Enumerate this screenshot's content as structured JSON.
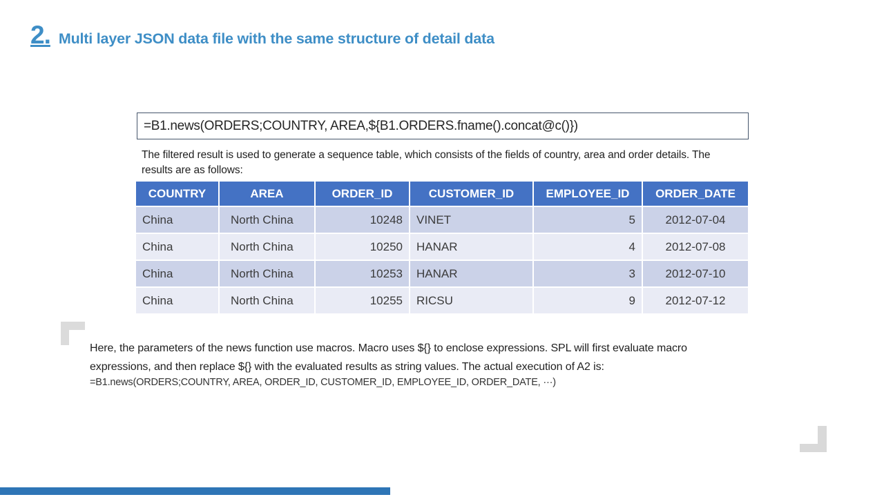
{
  "slide": {
    "title_number": "2.",
    "title": "Multi layer JSON data file with the same structure of detail data"
  },
  "code_box": {
    "formula": "=B1.news(ORDERS;COUNTRY, AREA,${B1.ORDERS.fname().concat@c()})"
  },
  "description": "The filtered result is used to generate a sequence table, which consists of the fields of country, area and order details. The results are as follows:",
  "table": {
    "columns": [
      "COUNTRY",
      "AREA",
      "ORDER_ID",
      "CUSTOMER_ID",
      "EMPLOYEE_ID",
      "ORDER_DATE"
    ],
    "rows": [
      [
        "China",
        "North China",
        "10248",
        "VINET",
        "5",
        "2012-07-04"
      ],
      [
        "China",
        "North China",
        "10250",
        "HANAR",
        "4",
        "2012-07-08"
      ],
      [
        "China",
        "North China",
        "10253",
        "HANAR",
        "3",
        "2012-07-10"
      ],
      [
        "China",
        "North China",
        "10255",
        "RICSU",
        "9",
        "2012-07-12"
      ]
    ]
  },
  "footnote": {
    "paragraph": "Here, the parameters of the news function use macros. Macro uses ${} to enclose expressions. SPL will first evaluate macro expressions, and then replace ${} with the evaluated results as string values. The actual execution of A2 is:",
    "formula": "=B1.news(ORDERS;COUNTRY, AREA, ORDER_ID, CUSTOMER_ID, EMPLOYEE_ID, ORDER_DATE, ···)"
  },
  "colors": {
    "title_blue": "#3e8ec6",
    "table_header_bg": "#4472c4",
    "row_dark": "#cbd2e8",
    "row_light": "#e9ebf5",
    "code_box_border": "#44546a",
    "bracket_gray": "#d9d9d9",
    "accent_bar_blue": "#2e75b6"
  }
}
